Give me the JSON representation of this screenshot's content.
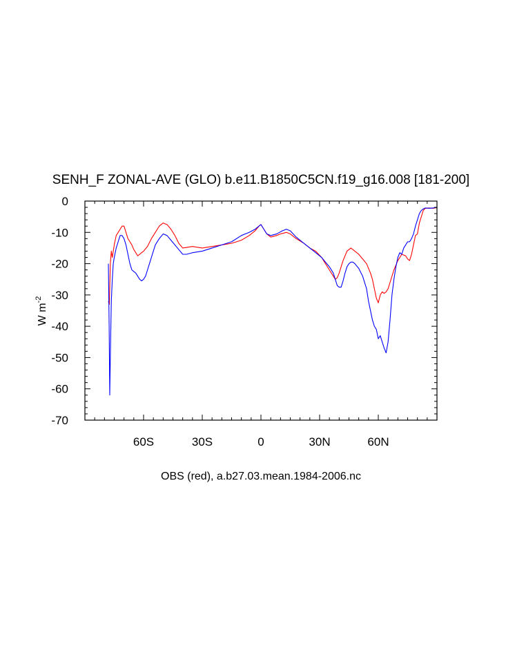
{
  "chart_data": {
    "type": "line",
    "title": "SENH_F ZONAL-AVE (GLO) b.e11.B1850C5CN.f19_g16.008 [181-200]",
    "caption": "OBS (red), a.b27.03.mean.1984-2006.nc",
    "ylabel": "W m",
    "ylabel_exponent": "-2",
    "xlim": [
      -90,
      90
    ],
    "ylim": [
      -70,
      0
    ],
    "x_ticks": [
      {
        "value": -60,
        "label": "60S"
      },
      {
        "value": -30,
        "label": "30S"
      },
      {
        "value": 0,
        "label": "0"
      },
      {
        "value": 30,
        "label": "30N"
      },
      {
        "value": 60,
        "label": "60N"
      }
    ],
    "y_ticks": [
      {
        "value": 0,
        "label": "0"
      },
      {
        "value": -10,
        "label": "-10"
      },
      {
        "value": -20,
        "label": "-20"
      },
      {
        "value": -30,
        "label": "-30"
      },
      {
        "value": -40,
        "label": "-40"
      },
      {
        "value": -50,
        "label": "-50"
      },
      {
        "value": -60,
        "label": "-60"
      },
      {
        "value": -70,
        "label": "-70"
      }
    ],
    "grid": false,
    "series": [
      {
        "color": "#ff0000",
        "points": [
          [
            -78,
            -32
          ],
          [
            -77.5,
            -33
          ],
          [
            -77,
            -20
          ],
          [
            -76.5,
            -16
          ],
          [
            -76,
            -18
          ],
          [
            -75,
            -14
          ],
          [
            -74,
            -11
          ],
          [
            -73,
            -10
          ],
          [
            -72,
            -9
          ],
          [
            -71,
            -8
          ],
          [
            -70,
            -8
          ],
          [
            -69,
            -10
          ],
          [
            -68,
            -12
          ],
          [
            -67,
            -13
          ],
          [
            -66,
            -14
          ],
          [
            -65,
            -15.5
          ],
          [
            -64,
            -16.5
          ],
          [
            -63,
            -17.5
          ],
          [
            -62,
            -17
          ],
          [
            -60,
            -16
          ],
          [
            -58,
            -14.5
          ],
          [
            -56,
            -12
          ],
          [
            -54,
            -10
          ],
          [
            -52,
            -8
          ],
          [
            -50,
            -7
          ],
          [
            -48,
            -7.5
          ],
          [
            -46,
            -9
          ],
          [
            -44,
            -11
          ],
          [
            -42,
            -13.5
          ],
          [
            -40,
            -15
          ],
          [
            -35,
            -14.5
          ],
          [
            -30,
            -15
          ],
          [
            -25,
            -14.5
          ],
          [
            -20,
            -14
          ],
          [
            -15,
            -13.5
          ],
          [
            -10,
            -12.5
          ],
          [
            -6,
            -11
          ],
          [
            -3,
            -9.5
          ],
          [
            -1,
            -8
          ],
          [
            0,
            -7.5
          ],
          [
            1,
            -8.5
          ],
          [
            3,
            -10.5
          ],
          [
            5,
            -11.5
          ],
          [
            8,
            -11
          ],
          [
            10,
            -10.5
          ],
          [
            13,
            -10
          ],
          [
            15,
            -10.5
          ],
          [
            18,
            -12
          ],
          [
            22,
            -13.5
          ],
          [
            25,
            -15
          ],
          [
            28,
            -16
          ],
          [
            31,
            -18
          ],
          [
            33,
            -20
          ],
          [
            35,
            -22
          ],
          [
            37,
            -24
          ],
          [
            38,
            -25
          ],
          [
            39,
            -24.5
          ],
          [
            40,
            -23
          ],
          [
            41,
            -21
          ],
          [
            42,
            -19
          ],
          [
            43,
            -17.5
          ],
          [
            44,
            -16
          ],
          [
            45,
            -15.5
          ],
          [
            46,
            -15
          ],
          [
            47,
            -15.5
          ],
          [
            48,
            -16
          ],
          [
            50,
            -17
          ],
          [
            52,
            -18.5
          ],
          [
            54,
            -20
          ],
          [
            56,
            -23
          ],
          [
            57,
            -25
          ],
          [
            58,
            -28
          ],
          [
            59,
            -31
          ],
          [
            60,
            -32.5
          ],
          [
            61,
            -30
          ],
          [
            62,
            -29
          ],
          [
            63,
            -29.5
          ],
          [
            64,
            -29
          ],
          [
            65,
            -28
          ],
          [
            66,
            -26
          ],
          [
            68,
            -22
          ],
          [
            70,
            -19
          ],
          [
            72,
            -17
          ],
          [
            74,
            -17.5
          ],
          [
            75,
            -18.5
          ],
          [
            76,
            -19
          ],
          [
            77,
            -17
          ],
          [
            78,
            -14
          ],
          [
            79,
            -11
          ],
          [
            80,
            -10.5
          ],
          [
            81,
            -7
          ],
          [
            82,
            -5
          ],
          [
            83,
            -3
          ],
          [
            84,
            -2.3
          ],
          [
            86,
            -2.2
          ],
          [
            88,
            -2.3
          ],
          [
            90,
            -2.1
          ]
        ]
      },
      {
        "color": "#0000ff",
        "points": [
          [
            -78,
            -20
          ],
          [
            -77.6,
            -40
          ],
          [
            -77.3,
            -62
          ],
          [
            -77,
            -50
          ],
          [
            -76.5,
            -32
          ],
          [
            -76,
            -25
          ],
          [
            -75.5,
            -20
          ],
          [
            -75,
            -18
          ],
          [
            -74,
            -15
          ],
          [
            -73,
            -13
          ],
          [
            -72,
            -11
          ],
          [
            -71,
            -11
          ],
          [
            -70,
            -12
          ],
          [
            -69,
            -14
          ],
          [
            -68,
            -17
          ],
          [
            -67,
            -20
          ],
          [
            -66,
            -22
          ],
          [
            -65,
            -22.5
          ],
          [
            -64,
            -23
          ],
          [
            -63,
            -24
          ],
          [
            -62,
            -25
          ],
          [
            -61,
            -25.5
          ],
          [
            -60,
            -25
          ],
          [
            -59,
            -24
          ],
          [
            -58,
            -22
          ],
          [
            -57,
            -20
          ],
          [
            -56,
            -18
          ],
          [
            -55,
            -16
          ],
          [
            -54,
            -14
          ],
          [
            -52,
            -12
          ],
          [
            -50,
            -10.5
          ],
          [
            -48,
            -11
          ],
          [
            -46,
            -12.5
          ],
          [
            -44,
            -14
          ],
          [
            -42,
            -15.5
          ],
          [
            -40,
            -17
          ],
          [
            -38,
            -17
          ],
          [
            -35,
            -16.5
          ],
          [
            -30,
            -16
          ],
          [
            -25,
            -15
          ],
          [
            -20,
            -14
          ],
          [
            -15,
            -13
          ],
          [
            -10,
            -11
          ],
          [
            -6,
            -10
          ],
          [
            -3,
            -9
          ],
          [
            -1,
            -8
          ],
          [
            0,
            -7.5
          ],
          [
            1,
            -8.5
          ],
          [
            3,
            -10.5
          ],
          [
            5,
            -11
          ],
          [
            8,
            -10.5
          ],
          [
            11,
            -9.5
          ],
          [
            13,
            -9
          ],
          [
            15,
            -9.5
          ],
          [
            18,
            -11.5
          ],
          [
            22,
            -13.5
          ],
          [
            25,
            -15
          ],
          [
            28,
            -16.5
          ],
          [
            31,
            -18
          ],
          [
            33,
            -19.5
          ],
          [
            35,
            -21
          ],
          [
            37,
            -23
          ],
          [
            38,
            -25
          ],
          [
            39,
            -27
          ],
          [
            40,
            -27.5
          ],
          [
            41,
            -27.5
          ],
          [
            42,
            -25.5
          ],
          [
            43,
            -23
          ],
          [
            44,
            -21
          ],
          [
            45,
            -20
          ],
          [
            46,
            -19.5
          ],
          [
            47,
            -19.5
          ],
          [
            48,
            -20
          ],
          [
            50,
            -21.5
          ],
          [
            52,
            -24
          ],
          [
            54,
            -28
          ],
          [
            55,
            -32
          ],
          [
            56,
            -35
          ],
          [
            57,
            -38
          ],
          [
            58,
            -40
          ],
          [
            59,
            -41
          ],
          [
            60,
            -44
          ],
          [
            61,
            -43
          ],
          [
            62,
            -45
          ],
          [
            63,
            -47
          ],
          [
            64,
            -48.5
          ],
          [
            65,
            -45
          ],
          [
            66,
            -38
          ],
          [
            67,
            -30
          ],
          [
            68,
            -25
          ],
          [
            69,
            -21
          ],
          [
            70,
            -18
          ],
          [
            71,
            -16.5
          ],
          [
            72,
            -17
          ],
          [
            73,
            -15
          ],
          [
            74,
            -14
          ],
          [
            75,
            -13
          ],
          [
            76,
            -13
          ],
          [
            77,
            -12
          ],
          [
            78,
            -10.5
          ],
          [
            79,
            -8
          ],
          [
            80,
            -6
          ],
          [
            81,
            -4
          ],
          [
            82,
            -3
          ],
          [
            83,
            -2.5
          ],
          [
            84,
            -2.2
          ],
          [
            86,
            -2.3
          ],
          [
            88,
            -2.2
          ],
          [
            90,
            -2
          ]
        ]
      }
    ]
  }
}
